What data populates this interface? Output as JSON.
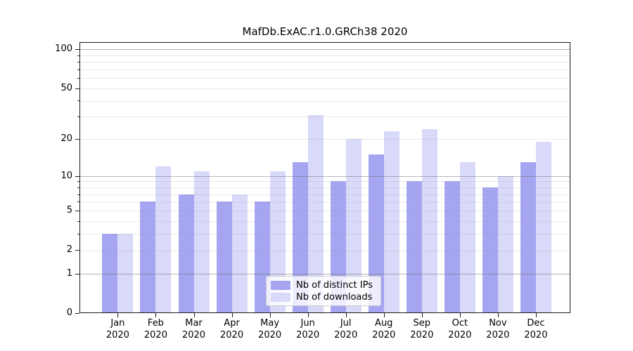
{
  "chart_data": {
    "type": "bar",
    "title": "MafDb.ExAC.r1.0.GRCh38 2020",
    "categories": [
      "Jan",
      "Feb",
      "Mar",
      "Apr",
      "May",
      "Jun",
      "Jul",
      "Aug",
      "Sep",
      "Oct",
      "Nov",
      "Dec"
    ],
    "x_year": "2020",
    "series": [
      {
        "name": "Nb of distinct IPs",
        "color": "#a5a5f2",
        "values": [
          3,
          6,
          7,
          6,
          6,
          13,
          9,
          15,
          9,
          9,
          8,
          13
        ]
      },
      {
        "name": "Nb of downloads",
        "color": "#d9d9f9",
        "values": [
          3,
          12,
          11,
          7,
          11,
          31,
          20,
          23,
          24,
          13,
          10,
          19
        ]
      }
    ],
    "xlabel": "",
    "ylabel": "",
    "y_scale": "log1p",
    "ylim": [
      0,
      113
    ],
    "y_ticks": [
      0,
      1,
      2,
      5,
      10,
      20,
      50,
      100
    ],
    "y_major_gridlines": [
      1,
      10,
      100
    ],
    "y_minor_gridlines": [
      2,
      3,
      4,
      5,
      6,
      7,
      8,
      9,
      20,
      30,
      40,
      50,
      60,
      70,
      80,
      90
    ],
    "grid": "on",
    "legend_position": "inside-bottom-center"
  }
}
